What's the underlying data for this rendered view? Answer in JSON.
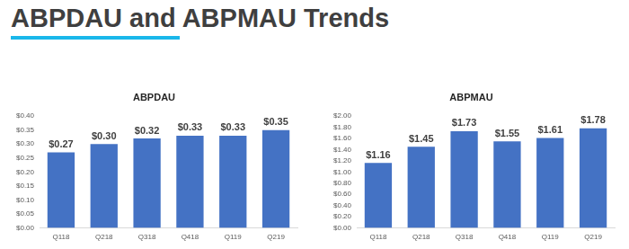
{
  "title": "ABPDAU and ABPMAU Trends",
  "chart_data": [
    {
      "type": "bar",
      "title": "ABPDAU",
      "categories": [
        "Q118",
        "Q218",
        "Q318",
        "Q418",
        "Q119",
        "Q219"
      ],
      "values": [
        0.27,
        0.3,
        0.32,
        0.33,
        0.33,
        0.35
      ],
      "value_labels": [
        "$0.27",
        "$0.30",
        "$0.32",
        "$0.33",
        "$0.33",
        "$0.35"
      ],
      "color": "#4472c4",
      "ylim": [
        0,
        0.4
      ],
      "yticks": [
        {
          "value": 0,
          "label": "$0.00"
        },
        {
          "value": 0.05,
          "label": "$0.05"
        },
        {
          "value": 0.1,
          "label": "$0.10"
        },
        {
          "value": 0.15,
          "label": "$0.15"
        },
        {
          "value": 0.2,
          "label": "$0.20"
        },
        {
          "value": 0.25,
          "label": "$0.25"
        },
        {
          "value": 0.3,
          "label": "$0.30"
        },
        {
          "value": 0.35,
          "label": "$0.35"
        },
        {
          "value": 0.4,
          "label": "$0.40"
        }
      ],
      "grid": false,
      "data_labels": true
    },
    {
      "type": "bar",
      "title": "ABPMAU",
      "categories": [
        "Q118",
        "Q218",
        "Q318",
        "Q418",
        "Q119",
        "Q219"
      ],
      "values": [
        1.16,
        1.45,
        1.73,
        1.55,
        1.61,
        1.78
      ],
      "value_labels": [
        "$1.16",
        "$1.45",
        "$1.73",
        "$1.55",
        "$1.61",
        "$1.78"
      ],
      "color": "#4472c4",
      "ylim": [
        0,
        2
      ],
      "yticks": [
        {
          "value": 0,
          "label": "$0.00"
        },
        {
          "value": 0.2,
          "label": "$0.20"
        },
        {
          "value": 0.4,
          "label": "$0.40"
        },
        {
          "value": 0.6,
          "label": "$0.60"
        },
        {
          "value": 0.8,
          "label": "$0.80"
        },
        {
          "value": 1,
          "label": "$1.00"
        },
        {
          "value": 1.2,
          "label": "$1.20"
        },
        {
          "value": 1.4,
          "label": "$1.40"
        },
        {
          "value": 1.6,
          "label": "$1.60"
        },
        {
          "value": 1.8,
          "label": "$1.80"
        },
        {
          "value": 2,
          "label": "$2.00"
        }
      ],
      "grid": false,
      "data_labels": true
    }
  ]
}
